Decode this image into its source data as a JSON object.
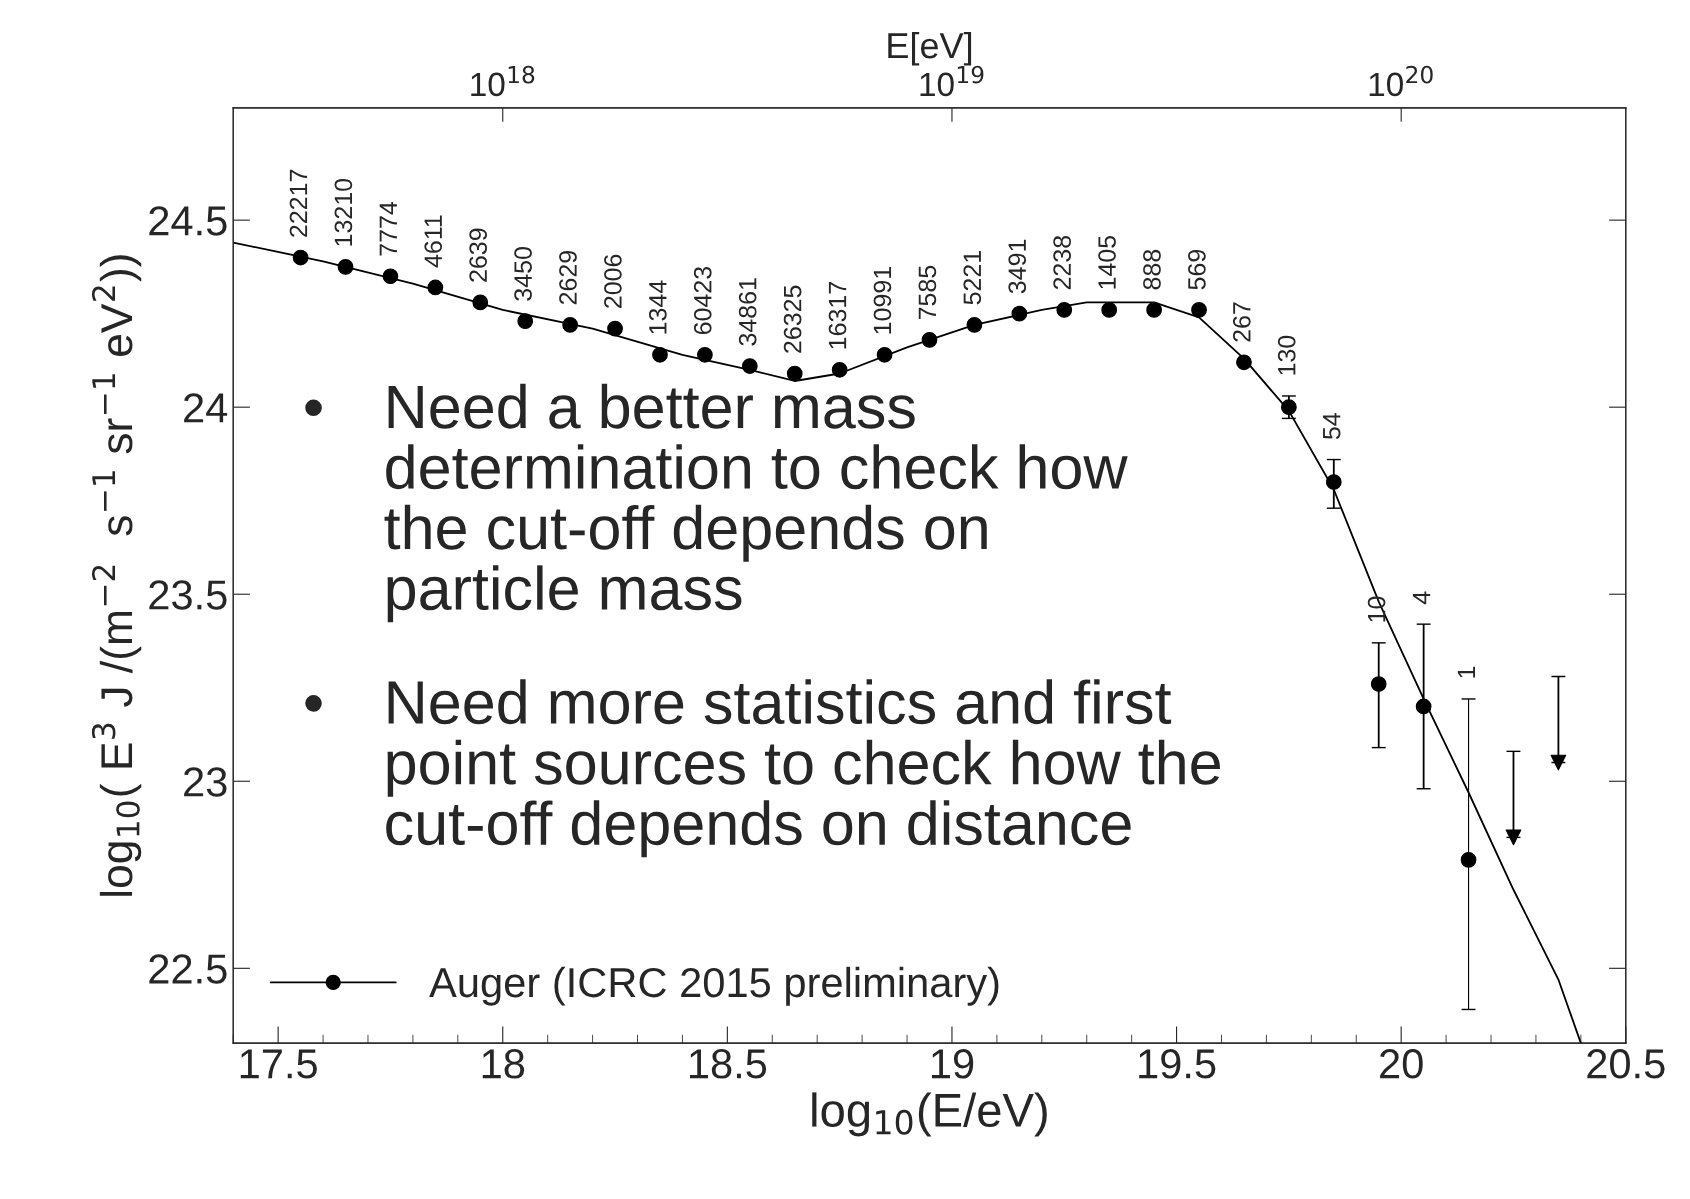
{
  "chart_data": {
    "type": "scatter",
    "xlabel": "log$_{10}$(E/eV)",
    "ylabel": "log$_{10}$( E$^{3}$ J /(m$^{−2}$  s$^{−1}$ sr$^{−1}$ eV$^{2}$))",
    "x2label": "E[eV]",
    "xlim": [
      17.4,
      20.5
    ],
    "xticks": [
      17.5,
      18,
      18.5,
      19,
      19.5,
      20,
      20.5
    ],
    "ylim": [
      22.3,
      24.8
    ],
    "yticks": [
      22.5,
      23,
      23.5,
      24,
      24.5
    ],
    "x2lim": [
      2.512e+17,
      3.162e+20
    ],
    "x2ticks": [
      {
        "value": 1e+18,
        "label": "10$^{18}$"
      },
      {
        "value": 1e+19,
        "label": "10$^{19}$"
      },
      {
        "value": 1e+20,
        "label": "10$^{20}$"
      }
    ],
    "log": "x2",
    "grid": false,
    "legend": "bottom left",
    "series": [
      {
        "name": "Auger (ICRC 2015 preliminary)",
        "marker": "circle",
        "color": "#000000",
        "x": [
          17.55,
          17.65,
          17.75,
          17.85,
          17.95,
          18.05,
          18.15,
          18.25,
          18.35,
          18.45,
          18.55,
          18.65,
          18.75,
          18.85,
          18.95,
          19.05,
          19.15,
          19.25,
          19.35,
          19.45,
          19.55,
          19.65,
          19.75,
          19.85,
          19.95,
          20.05,
          20.15
        ],
        "values": [
          24.4,
          24.375,
          24.35,
          24.32,
          24.28,
          24.23,
          24.22,
          24.21,
          24.14,
          24.14,
          24.11,
          24.09,
          24.1,
          24.14,
          24.18,
          24.22,
          24.25,
          24.26,
          24.26,
          24.26,
          24.26,
          24.12,
          24.0,
          23.8,
          23.26,
          23.2,
          22.79
        ],
        "errors": [
          null,
          null,
          null,
          null,
          null,
          null,
          null,
          null,
          null,
          null,
          null,
          null,
          null,
          null,
          null,
          null,
          null,
          null,
          null,
          null,
          null,
          null,
          [
            23.97,
            24.03
          ],
          [
            23.73,
            23.86
          ],
          [
            23.09,
            23.37
          ],
          [
            22.98,
            23.42
          ],
          [
            22.39,
            23.22
          ]
        ]
      },
      {
        "type": "scatter",
        "marker": "triangle",
        "color": "#000000",
        "x": [
          20.25,
          20.35
        ],
        "values": [
          22.85,
          23.05
        ],
        "errors": [
          [
            22.85,
            23.08
          ],
          [
            23.05,
            23.28
          ]
        ]
      },
      {
        "type": "line",
        "marker": "none",
        "line_style": "solid",
        "color": "#000000",
        "x": [
          17.4,
          17.6,
          17.8,
          18.0,
          18.2,
          18.4,
          18.55,
          18.65,
          18.75,
          18.9,
          19.05,
          19.2,
          19.3,
          19.45,
          19.55,
          19.65,
          19.75,
          19.85,
          19.95,
          20.05,
          20.15,
          20.25,
          20.35,
          20.4
        ],
        "values": [
          24.44,
          24.39,
          24.33,
          24.26,
          24.21,
          24.14,
          24.1,
          24.07,
          24.09,
          24.16,
          24.22,
          24.26,
          24.28,
          24.28,
          24.24,
          24.13,
          23.99,
          23.78,
          23.48,
          23.22,
          22.97,
          22.71,
          22.47,
          22.3
        ]
      }
    ],
    "annotations": [
      {
        "text": "22217",
        "x": 17.55,
        "y": 24.4
      },
      {
        "text": "13210",
        "x": 17.65,
        "y": 24.375
      },
      {
        "text": "7774",
        "x": 17.75,
        "y": 24.35
      },
      {
        "text": "4611",
        "x": 17.85,
        "y": 24.32
      },
      {
        "text": "2639",
        "x": 17.95,
        "y": 24.28
      },
      {
        "text": "3450",
        "x": 18.05,
        "y": 24.23
      },
      {
        "text": "2629",
        "x": 18.15,
        "y": 24.22
      },
      {
        "text": "2006",
        "x": 18.25,
        "y": 24.21
      },
      {
        "text": "1344",
        "x": 18.35,
        "y": 24.14
      },
      {
        "text": "60423",
        "x": 18.45,
        "y": 24.14
      },
      {
        "text": "34861",
        "x": 18.55,
        "y": 24.11
      },
      {
        "text": "26325",
        "x": 18.65,
        "y": 24.09
      },
      {
        "text": "16317",
        "x": 18.75,
        "y": 24.1
      },
      {
        "text": "10991",
        "x": 18.85,
        "y": 24.14
      },
      {
        "text": "7585",
        "x": 18.95,
        "y": 24.18
      },
      {
        "text": "5221",
        "x": 19.05,
        "y": 24.22
      },
      {
        "text": "3491",
        "x": 19.15,
        "y": 24.25
      },
      {
        "text": "2238",
        "x": 19.25,
        "y": 24.26
      },
      {
        "text": "1405",
        "x": 19.35,
        "y": 24.26
      },
      {
        "text": "888",
        "x": 19.45,
        "y": 24.26
      },
      {
        "text": "569",
        "x": 19.55,
        "y": 24.26
      },
      {
        "text": "267",
        "x": 19.65,
        "y": 24.12
      },
      {
        "text": "130",
        "x": 19.75,
        "y": 24.03
      },
      {
        "text": "54",
        "x": 19.85,
        "y": 23.86
      },
      {
        "text": "10",
        "x": 19.95,
        "y": 23.37
      },
      {
        "text": "4",
        "x": 20.05,
        "y": 23.42
      },
      {
        "text": "1",
        "x": 20.15,
        "y": 23.22
      },
      "• Need a better mass\ndetermination to check how\nthe cut-off depends on\nparticle mass",
      "• Need more statistics and first\npoint sources to check how the\ncut-off depends on distance"
    ]
  }
}
